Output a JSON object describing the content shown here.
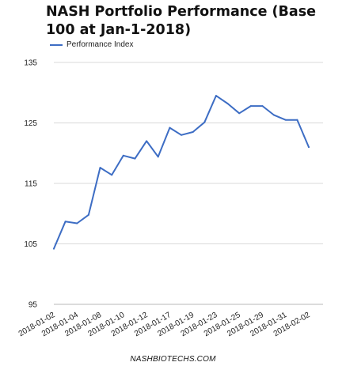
{
  "chart_data": {
    "type": "line",
    "title": "NASH Portfolio Performance (Base 100 at Jan-1-2018)",
    "xlabel": "",
    "ylabel": "",
    "ylim": [
      95,
      135
    ],
    "yticks": [
      95,
      105,
      115,
      125,
      135
    ],
    "grid": true,
    "legend_position": "top-left",
    "x": [
      "2018-01-02",
      "2018-01-03",
      "2018-01-04",
      "2018-01-05",
      "2018-01-08",
      "2018-01-09",
      "2018-01-10",
      "2018-01-11",
      "2018-01-12",
      "2018-01-16",
      "2018-01-17",
      "2018-01-18",
      "2018-01-19",
      "2018-01-22",
      "2018-01-23",
      "2018-01-24",
      "2018-01-25",
      "2018-01-26",
      "2018-01-29",
      "2018-01-30",
      "2018-01-31",
      "2018-02-01",
      "2018-02-02"
    ],
    "xtick_labels": [
      "2018-01-02",
      "2018-01-04",
      "2018-01-08",
      "2018-01-10",
      "2018-01-12",
      "2018-01-17",
      "2018-01-19",
      "2018-01-23",
      "2018-01-25",
      "2018-01-29",
      "2018-01-31",
      "2018-02-02"
    ],
    "series": [
      {
        "name": "Performance Index",
        "color": "#3d6dc4",
        "values": [
          104.2,
          108.7,
          108.4,
          109.8,
          117.6,
          116.4,
          119.6,
          119.1,
          122.0,
          119.4,
          124.2,
          123.0,
          123.5,
          125.1,
          129.5,
          128.2,
          126.6,
          127.8,
          127.8,
          126.3,
          125.5,
          125.5,
          121.0
        ]
      }
    ]
  },
  "footer": "NASHBIOTECHS.COM"
}
